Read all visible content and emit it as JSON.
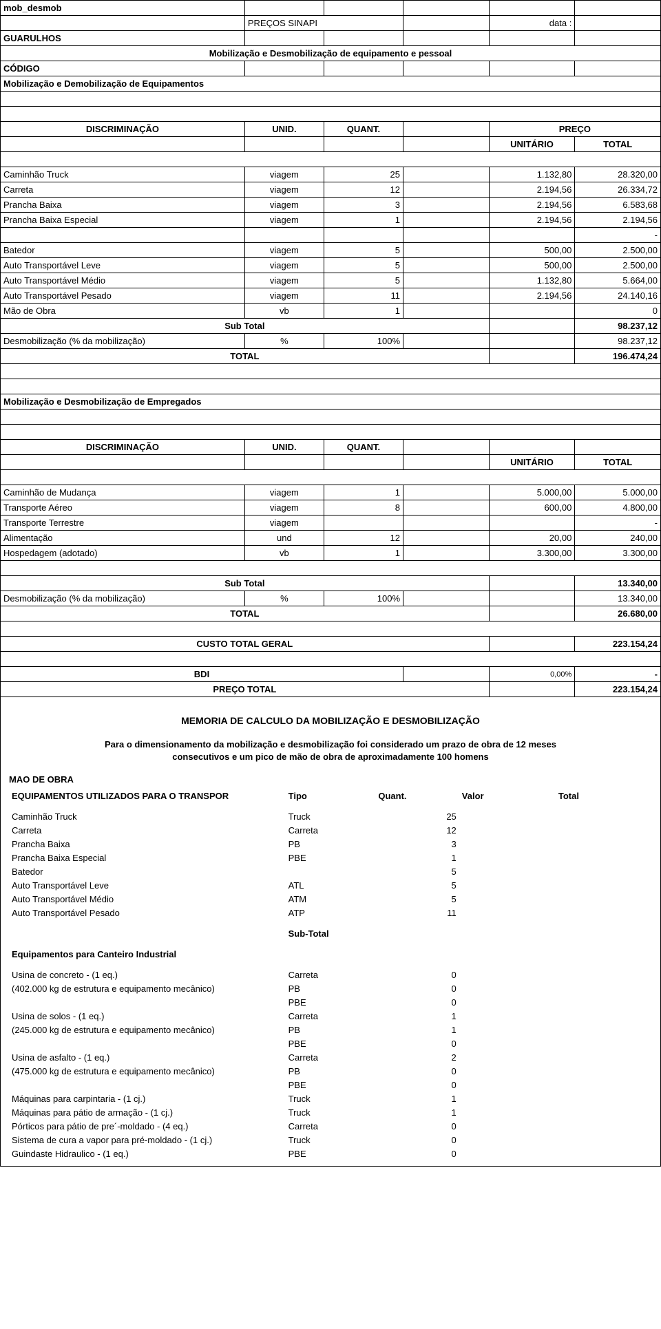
{
  "header": {
    "sheet_name": "mob_desmob",
    "precos_sinapi": "PREÇOS SINAPI",
    "data_label": "data :",
    "guarulhos": "GUARULHOS",
    "mob_desmob_equip_pessoal": "Mobilização e Desmobilização de equipamento e pessoal",
    "codigo": "CÓDIGO",
    "mob_demob_equip": "Mobilização e Demobilização de Equipamentos"
  },
  "col_headers": {
    "discriminacao": "DISCRIMINAÇÃO",
    "unid": "UNID.",
    "quant": "QUANT.",
    "preco": "PREÇO",
    "unitario": "UNITÁRIO",
    "total": "TOTAL"
  },
  "equip_rows": [
    {
      "desc": "Caminhão Truck",
      "unid": "viagem",
      "quant": "25",
      "unit": "1.132,80",
      "total": "28.320,00"
    },
    {
      "desc": "Carreta",
      "unid": "viagem",
      "quant": "12",
      "unit": "2.194,56",
      "total": "26.334,72"
    },
    {
      "desc": "Prancha Baixa",
      "unid": "viagem",
      "quant": "3",
      "unit": "2.194,56",
      "total": "6.583,68"
    },
    {
      "desc": "Prancha Baixa Especial",
      "unid": "viagem",
      "quant": "1",
      "unit": "2.194,56",
      "total": "2.194,56"
    },
    {
      "desc": "",
      "unid": "",
      "quant": "",
      "unit": "",
      "total": "-"
    },
    {
      "desc": "Batedor",
      "unid": "viagem",
      "quant": "5",
      "unit": "500,00",
      "total": "2.500,00"
    },
    {
      "desc": "Auto Transportável Leve",
      "unid": "viagem",
      "quant": "5",
      "unit": "500,00",
      "total": "2.500,00"
    },
    {
      "desc": "Auto Transportável Médio",
      "unid": "viagem",
      "quant": "5",
      "unit": "1.132,80",
      "total": "5.664,00"
    },
    {
      "desc": "Auto Transportável Pesado",
      "unid": "viagem",
      "quant": "11",
      "unit": "2.194,56",
      "total": "24.140,16"
    },
    {
      "desc": "Mão de Obra",
      "unid": "vb",
      "quant": "1",
      "unit": "",
      "total": "0"
    }
  ],
  "equip_totals": {
    "subtotal_label": "Sub Total",
    "subtotal": "98.237,12",
    "desmob_label": "Desmobilização (% da mobilização)",
    "desmob_unid": "%",
    "desmob_quant": "100%",
    "desmob_total": "98.237,12",
    "total_label": "TOTAL",
    "total": "196.474,24"
  },
  "empregados_header": "Mobilização e Desmobilização de Empregados",
  "empregados_rows": [
    {
      "desc": "Caminhão de Mudança",
      "unid": "viagem",
      "quant": "1",
      "unit": "5.000,00",
      "total": "5.000,00"
    },
    {
      "desc": "Transporte Aéreo",
      "unid": "viagem",
      "quant": "8",
      "unit": "600,00",
      "total": "4.800,00"
    },
    {
      "desc": "Transporte Terrestre",
      "unid": "viagem",
      "quant": "",
      "unit": "",
      "total": "-"
    },
    {
      "desc": "Alimentação",
      "unid": "und",
      "quant": "12",
      "unit": "20,00",
      "total": "240,00"
    },
    {
      "desc": "Hospedagem (adotado)",
      "unid": "vb",
      "quant": "1",
      "unit": "3.300,00",
      "total": "3.300,00"
    }
  ],
  "empregados_totals": {
    "subtotal_label": "Sub Total",
    "subtotal": "13.340,00",
    "desmob_label": "Desmobilização (% da mobilização)",
    "desmob_unid": "%",
    "desmob_quant": "100%",
    "desmob_total": "13.340,00",
    "total_label": "TOTAL",
    "total": "26.680,00"
  },
  "custo_total": {
    "label": "CUSTO TOTAL GERAL",
    "value": "223.154,24"
  },
  "bdi": {
    "label": "BDI",
    "pct": "0,00%",
    "value": "-"
  },
  "preco_total": {
    "label": "PREÇO TOTAL",
    "value": "223.154,24"
  },
  "calc": {
    "title": "MEMORIA DE CALCULO DA MOBILIZAÇÃO E DESMOBILIZAÇÃO",
    "para1": "Para o dimensionamento da mobilização e desmobilização foi considerado um prazo de obra de 12 meses",
    "para2": "consecutivos e um pico de mão de obra de aproximadamente 100 homens",
    "mao_de_obra": "MAO DE OBRA",
    "equip_head": "EQUIPAMENTOS UTILIZADOS PARA O TRANSPOR",
    "col_tipo": "Tipo",
    "col_quant": "Quant.",
    "col_valor": "Valor",
    "col_total": "Total",
    "transport_rows": [
      {
        "desc": "Caminhão Truck",
        "tipo": "Truck",
        "q": "25"
      },
      {
        "desc": "Carreta",
        "tipo": "Carreta",
        "q": "12"
      },
      {
        "desc": "Prancha Baixa",
        "tipo": "PB",
        "q": "3"
      },
      {
        "desc": "Prancha Baixa Especial",
        "tipo": "PBE",
        "q": "1"
      },
      {
        "desc": "Batedor",
        "tipo": "",
        "q": "5"
      },
      {
        "desc": "Auto Transportável Leve",
        "tipo": "ATL",
        "q": "5"
      },
      {
        "desc": "Auto Transportável Médio",
        "tipo": "ATM",
        "q": "5"
      },
      {
        "desc": "Auto Transportável Pesado",
        "tipo": "ATP",
        "q": "11"
      }
    ],
    "subtotal_label": "Sub-Total",
    "canteiro_label": "Equipamentos para Canteiro Industrial",
    "canteiro_rows": [
      {
        "desc": "Usina de concreto - (1 eq.)",
        "tipo": "Carreta",
        "q": "0"
      },
      {
        "desc": "(402.000 kg de estrutura e equipamento mecânico)",
        "tipo": "PB",
        "q": "0"
      },
      {
        "desc": "",
        "tipo": "PBE",
        "q": "0"
      },
      {
        "desc": "Usina de solos - (1 eq.)",
        "tipo": "Carreta",
        "q": "1"
      },
      {
        "desc": "(245.000 kg de estrutura e equipamento mecânico)",
        "tipo": "PB",
        "q": "1"
      },
      {
        "desc": "",
        "tipo": "PBE",
        "q": "0"
      },
      {
        "desc": "Usina de asfalto - (1 eq.)",
        "tipo": "Carreta",
        "q": "2"
      },
      {
        "desc": "(475.000 kg de estrutura e equipamento mecânico)",
        "tipo": "PB",
        "q": "0"
      },
      {
        "desc": "",
        "tipo": "PBE",
        "q": "0"
      },
      {
        "desc": "Máquinas para carpintaria - (1 cj.)",
        "tipo": "Truck",
        "q": "1"
      },
      {
        "desc": "Máquinas para pátio de armação - (1 cj.)",
        "tipo": "Truck",
        "q": "1"
      },
      {
        "desc": "Pórticos para pátio de pre´-moldado - (4 eq.)",
        "tipo": "Carreta",
        "q": "0"
      },
      {
        "desc": "Sistema de cura a vapor para pré-moldado - (1 cj.)",
        "tipo": "Truck",
        "q": "0"
      },
      {
        "desc": "Guindaste Hidraulico  - (1 eq.)",
        "tipo": "PBE",
        "q": "0"
      }
    ]
  },
  "colwidths": {
    "c1": "37%",
    "c2": "12%",
    "c3": "12%",
    "c4": "13%",
    "c5": "13%",
    "c6": "13%"
  }
}
